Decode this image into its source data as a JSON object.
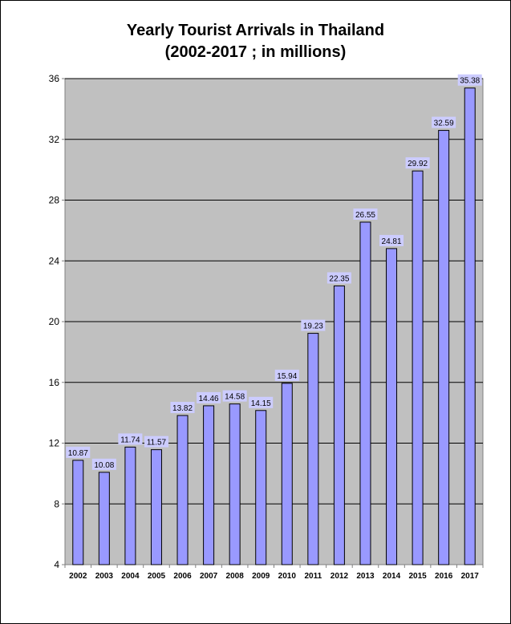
{
  "chart_data": {
    "type": "bar",
    "title": "Yearly Tourist Arrivals in Thailand",
    "subtitle": "(2002-2017 ; in millions)",
    "xlabel": "",
    "ylabel": "",
    "categories": [
      "2002",
      "2003",
      "2004",
      "2005",
      "2006",
      "2007",
      "2008",
      "2009",
      "2010",
      "2011",
      "2012",
      "2013",
      "2014",
      "2015",
      "2016",
      "2017"
    ],
    "values": [
      10.87,
      10.08,
      11.74,
      11.57,
      13.82,
      14.46,
      14.58,
      14.15,
      15.94,
      19.23,
      22.35,
      26.55,
      24.81,
      29.92,
      32.59,
      35.38
    ],
    "data_labels": [
      "10.87",
      "10.08",
      "11.74",
      "11.57",
      "13.82",
      "14.46",
      "14.58",
      "14.15",
      "15.94",
      "19.23",
      "22.35",
      "26.55",
      "24.81",
      "29.92",
      "32.59",
      "35.38"
    ],
    "ylim": [
      4,
      36
    ],
    "yticks": [
      4,
      8,
      12,
      16,
      20,
      24,
      28,
      32,
      36
    ],
    "grid": true,
    "legend": "none"
  },
  "colors": {
    "plot_background": "#c0c0c0",
    "bar_fill": "#9999ff",
    "bar_stroke": "#000000",
    "label_box": "#ccccff",
    "gridline": "#000000",
    "axis": "#808080"
  }
}
